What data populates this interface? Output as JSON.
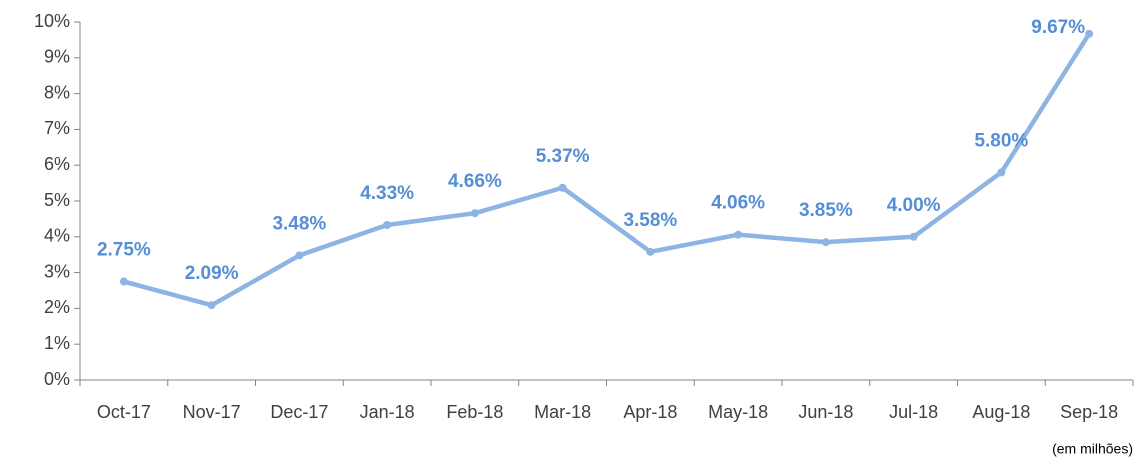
{
  "chart_data": {
    "type": "line",
    "categories": [
      "Oct-17",
      "Nov-17",
      "Dec-17",
      "Jan-18",
      "Feb-18",
      "Mar-18",
      "Apr-18",
      "May-18",
      "Jun-18",
      "Jul-18",
      "Aug-18",
      "Sep-18"
    ],
    "series": [
      {
        "color": "#8eb4e3",
        "values": [
          2.75,
          2.09,
          3.48,
          4.33,
          4.66,
          5.37,
          3.58,
          4.06,
          3.85,
          4.0,
          5.8,
          9.67
        ],
        "value_labels": [
          "2.75%",
          "2.09%",
          "3.48%",
          "4.33%",
          "4.66%",
          "5.37%",
          "3.58%",
          "4.06%",
          "3.85%",
          "4.00%",
          "5.80%",
          "9.67%"
        ],
        "label_color": "#558ed5"
      }
    ],
    "ylim": [
      0,
      10
    ],
    "yticks": [
      {
        "value": 0,
        "label": "0%"
      },
      {
        "value": 1,
        "label": "1%"
      },
      {
        "value": 2,
        "label": "2%"
      },
      {
        "value": 3,
        "label": "3%"
      },
      {
        "value": 4,
        "label": "4%"
      },
      {
        "value": 5,
        "label": "5%"
      },
      {
        "value": 6,
        "label": "6%"
      },
      {
        "value": 7,
        "label": "7%"
      },
      {
        "value": 8,
        "label": "8%"
      },
      {
        "value": 9,
        "label": "9%"
      },
      {
        "value": 10,
        "label": "10%"
      }
    ],
    "annotation": "(em milhões)"
  }
}
